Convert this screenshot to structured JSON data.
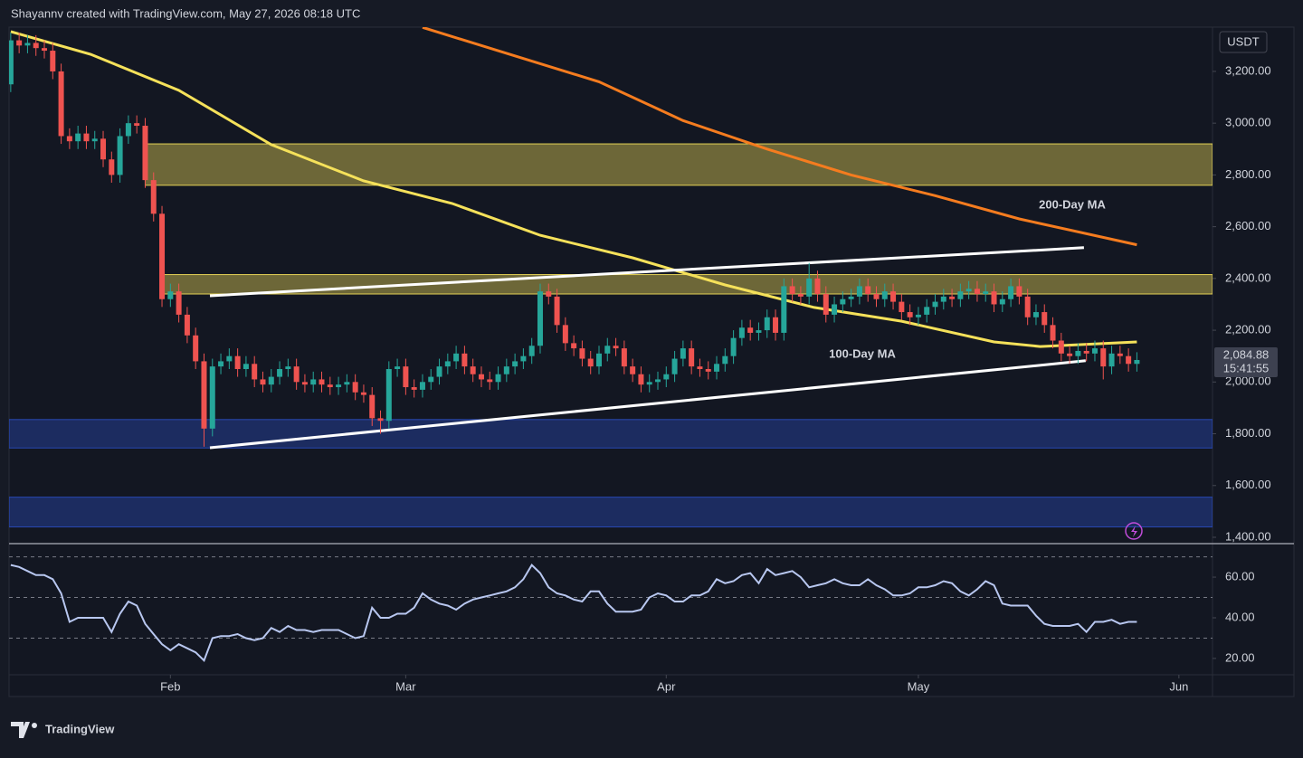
{
  "header": {
    "text": "Shayannv created with TradingView.com, May 27, 2026 08:18 UTC",
    "logo": "TradingView"
  },
  "chart_data": [
    {
      "type": "candlestick",
      "currency": "USDT",
      "x": [
        0,
        1,
        2,
        3,
        4,
        5,
        6,
        7,
        8,
        9,
        10,
        11,
        12,
        13,
        14,
        15,
        16,
        17,
        18,
        19,
        20,
        21,
        22,
        23,
        24,
        25,
        26,
        27,
        28,
        29,
        30,
        31,
        32,
        33,
        34,
        35,
        36,
        37,
        38,
        39,
        40,
        41,
        42,
        43,
        44,
        45,
        46,
        47,
        48,
        49,
        50,
        51,
        52,
        53,
        54,
        55,
        56,
        57,
        58,
        59,
        60,
        61,
        62,
        63,
        64,
        65,
        66,
        67,
        68,
        69,
        70,
        71,
        72,
        73,
        74,
        75,
        76,
        77,
        78,
        79,
        80,
        81,
        82,
        83,
        84,
        85,
        86,
        87,
        88,
        89,
        90,
        91,
        92,
        93,
        94,
        95,
        96,
        97,
        98,
        99,
        100,
        101,
        102,
        103,
        104,
        105,
        106,
        107,
        108,
        109,
        110,
        111,
        112,
        113,
        114,
        115,
        116,
        117,
        118,
        119,
        120,
        121,
        122,
        123,
        124,
        125,
        126,
        127,
        128,
        129,
        130,
        131,
        132,
        133,
        134
      ],
      "open": [
        3150,
        3320,
        3300,
        3310,
        3290,
        3280,
        3200,
        2950,
        2930,
        2960,
        2930,
        2940,
        2860,
        2800,
        2950,
        3000,
        2990,
        2780,
        2650,
        2320,
        2350,
        2260,
        2180,
        2080,
        1820,
        2060,
        2080,
        2100,
        2050,
        2070,
        2010,
        1990,
        2020,
        2050,
        2060,
        2000,
        1990,
        2010,
        1990,
        1980,
        1990,
        2000,
        1960,
        1950,
        1860,
        1850,
        2050,
        2060,
        1980,
        1970,
        2000,
        2020,
        2060,
        2080,
        2110,
        2060,
        2030,
        2010,
        2000,
        2030,
        2060,
        2080,
        2100,
        2140,
        2350,
        2330,
        2220,
        2150,
        2130,
        2090,
        2060,
        2110,
        2140,
        2130,
        2060,
        2030,
        1990,
        2000,
        2010,
        2030,
        2090,
        2130,
        2060,
        2050,
        2040,
        2070,
        2100,
        2170,
        2210,
        2190,
        2200,
        2250,
        2190,
        2370,
        2340,
        2330,
        2400,
        2340,
        2260,
        2300,
        2320,
        2330,
        2370,
        2340,
        2320,
        2350,
        2310,
        2270,
        2250,
        2260,
        2290,
        2310,
        2330,
        2320,
        2350,
        2360,
        2340,
        2350,
        2300,
        2320,
        2370,
        2330,
        2250,
        2270,
        2220,
        2160,
        2110,
        2100,
        2120,
        2110,
        2130,
        2060,
        2110,
        2100,
        2070
      ],
      "high": [
        3350,
        3350,
        3340,
        3340,
        3320,
        3310,
        3230,
        2980,
        2990,
        2990,
        2970,
        2970,
        2890,
        2980,
        3030,
        3030,
        3020,
        2810,
        2680,
        2380,
        2380,
        2290,
        2210,
        2110,
        2090,
        2110,
        2130,
        2130,
        2100,
        2100,
        2040,
        2050,
        2080,
        2090,
        2090,
        2030,
        2040,
        2040,
        2020,
        2020,
        2030,
        2030,
        1990,
        1980,
        1890,
        2080,
        2090,
        2090,
        2010,
        2030,
        2050,
        2090,
        2110,
        2140,
        2140,
        2090,
        2060,
        2040,
        2060,
        2090,
        2110,
        2130,
        2170,
        2380,
        2380,
        2360,
        2250,
        2180,
        2160,
        2120,
        2140,
        2170,
        2170,
        2160,
        2090,
        2060,
        2030,
        2040,
        2060,
        2120,
        2160,
        2160,
        2090,
        2080,
        2100,
        2130,
        2200,
        2240,
        2240,
        2230,
        2280,
        2280,
        2400,
        2400,
        2370,
        2460,
        2430,
        2370,
        2330,
        2350,
        2360,
        2400,
        2400,
        2370,
        2380,
        2380,
        2340,
        2300,
        2290,
        2320,
        2340,
        2360,
        2360,
        2380,
        2390,
        2390,
        2380,
        2380,
        2350,
        2400,
        2400,
        2360,
        2300,
        2300,
        2250,
        2190,
        2140,
        2150,
        2150,
        2160,
        2160,
        2140,
        2140,
        2130,
        2115
      ],
      "low": [
        3120,
        3270,
        3270,
        3260,
        3250,
        3170,
        2920,
        2900,
        2900,
        2900,
        2900,
        2830,
        2770,
        2770,
        2920,
        2960,
        2750,
        2620,
        2290,
        2290,
        2230,
        2150,
        2050,
        1750,
        1790,
        2030,
        2050,
        2020,
        2020,
        1980,
        1960,
        1960,
        1990,
        2020,
        1970,
        1960,
        1960,
        1960,
        1950,
        1950,
        1960,
        1930,
        1920,
        1830,
        1800,
        1820,
        2020,
        1950,
        1940,
        1940,
        1970,
        1990,
        2030,
        2050,
        2030,
        2000,
        1980,
        1970,
        1970,
        2000,
        2030,
        2050,
        2070,
        2110,
        2300,
        2190,
        2120,
        2100,
        2060,
        2030,
        2030,
        2080,
        2100,
        2030,
        2000,
        1960,
        1960,
        1970,
        1980,
        2000,
        2060,
        2030,
        2020,
        2010,
        2010,
        2040,
        2070,
        2140,
        2160,
        2160,
        2170,
        2160,
        2160,
        2310,
        2300,
        2300,
        2310,
        2230,
        2230,
        2270,
        2290,
        2300,
        2310,
        2290,
        2290,
        2280,
        2240,
        2220,
        2220,
        2230,
        2260,
        2280,
        2290,
        2290,
        2320,
        2310,
        2310,
        2270,
        2270,
        2290,
        2300,
        2220,
        2220,
        2190,
        2130,
        2080,
        2070,
        2070,
        2080,
        2080,
        2010,
        2030,
        2070,
        2040,
        2040
      ],
      "close": [
        3320,
        3300,
        3310,
        3290,
        3280,
        3200,
        2950,
        2930,
        2960,
        2930,
        2940,
        2860,
        2800,
        2950,
        3000,
        2990,
        2780,
        2650,
        2320,
        2350,
        2260,
        2180,
        2080,
        1820,
        2060,
        2080,
        2100,
        2050,
        2070,
        2010,
        1990,
        2020,
        2050,
        2060,
        2000,
        1990,
        2010,
        1990,
        1980,
        1990,
        2000,
        1960,
        1950,
        1860,
        1850,
        2050,
        2060,
        1980,
        1970,
        2000,
        2020,
        2060,
        2080,
        2110,
        2060,
        2030,
        2010,
        2000,
        2030,
        2060,
        2080,
        2100,
        2140,
        2350,
        2330,
        2220,
        2150,
        2130,
        2090,
        2060,
        2110,
        2140,
        2130,
        2060,
        2030,
        1990,
        2000,
        2010,
        2030,
        2090,
        2130,
        2060,
        2050,
        2040,
        2070,
        2100,
        2170,
        2210,
        2190,
        2200,
        2250,
        2190,
        2370,
        2340,
        2330,
        2400,
        2340,
        2260,
        2300,
        2320,
        2330,
        2370,
        2340,
        2320,
        2350,
        2310,
        2270,
        2250,
        2260,
        2290,
        2310,
        2330,
        2320,
        2350,
        2360,
        2340,
        2350,
        2300,
        2320,
        2370,
        2330,
        2250,
        2270,
        2220,
        2160,
        2110,
        2100,
        2120,
        2110,
        2130,
        2060,
        2110,
        2100,
        2070,
        2085
      ],
      "up_color": "#26a69a",
      "down_color": "#ef5350",
      "xlim": [
        -0.2,
        143
      ],
      "xticks": [
        {
          "value": 19,
          "label": "Feb"
        },
        {
          "value": 47,
          "label": "Mar"
        },
        {
          "value": 78,
          "label": "Apr"
        },
        {
          "value": 108,
          "label": "May"
        },
        {
          "value": 139,
          "label": "Jun"
        }
      ],
      "ylim": [
        1379,
        3371
      ],
      "yticks": [
        {
          "value": 1400,
          "label": "1,400.00"
        },
        {
          "value": 1600,
          "label": "1,600.00"
        },
        {
          "value": 1800,
          "label": "1,800.00"
        },
        {
          "value": 2000,
          "label": "2,000.00"
        },
        {
          "value": 2200,
          "label": "2,200.00"
        },
        {
          "value": 2400,
          "label": "2,400.00"
        },
        {
          "value": 2600,
          "label": "2,600.00"
        },
        {
          "value": 2800,
          "label": "2,800.00"
        },
        {
          "value": 3000,
          "label": "3,000.00"
        },
        {
          "value": 3200,
          "label": "3,200.00"
        }
      ],
      "last_price": {
        "value": 2084.88,
        "label": "2,084.88",
        "countdown": "15:41:55"
      },
      "series": [
        {
          "name": "200-Day MA",
          "color": "#f57c1f",
          "x": [
            49,
            60,
            70,
            80,
            90,
            100,
            110,
            120,
            134
          ],
          "values": [
            3370,
            3260,
            3160,
            3010,
            2900,
            2800,
            2720,
            2630,
            2530
          ]
        },
        {
          "name": "100-Day MA",
          "color": "#f5e15a",
          "x": [
            0,
            9.5,
            20,
            31,
            42,
            52.5,
            63,
            74,
            85,
            95.6,
            106,
            117,
            122.5,
            134
          ],
          "values": [
            3354,
            3266,
            3127,
            2917,
            2777,
            2690,
            2567,
            2480,
            2375,
            2288,
            2235,
            2155,
            2137,
            2155
          ]
        }
      ],
      "zones": [
        {
          "from": 2760,
          "to": 2920,
          "start": 16,
          "color": "#f5e15a"
        },
        {
          "from": 2340,
          "to": 2415,
          "start": 18,
          "color": "#f5e15a"
        },
        {
          "from": 1745,
          "to": 1855,
          "start": -0.2,
          "color": "#2a4dbf"
        },
        {
          "from": 1440,
          "to": 1555,
          "start": -0.2,
          "color": "#2a4dbf"
        }
      ],
      "trendlines": [
        {
          "x": [
            23.7,
            127.7
          ],
          "values": [
            2333,
            2519
          ]
        },
        {
          "x": [
            23.7,
            127.9
          ],
          "values": [
            1746,
            2082
          ]
        }
      ],
      "rsi": {
        "color": "#b8c7f0",
        "ylim": [
          12.4,
          75.6
        ],
        "yticks": [
          {
            "value": 20,
            "label": "20.00"
          },
          {
            "value": 40,
            "label": "40.00"
          },
          {
            "value": 60,
            "label": "60.00"
          }
        ],
        "levels": [
          30,
          50,
          70
        ],
        "values": [
          66,
          65,
          63,
          61,
          61,
          59,
          52,
          38,
          40,
          40,
          40,
          40,
          33,
          42,
          48,
          46,
          37,
          32,
          27,
          24,
          27,
          25,
          23,
          19,
          30,
          31,
          31,
          32,
          30,
          29,
          30,
          35,
          33,
          36,
          34,
          34,
          33,
          34,
          34,
          34,
          32,
          30,
          31,
          45,
          40,
          40,
          42,
          42,
          45,
          52,
          49,
          47,
          46,
          44,
          47,
          49,
          50,
          51,
          52,
          53,
          55,
          59,
          66,
          62,
          55,
          52,
          51,
          49,
          48,
          53,
          53,
          47,
          43,
          43,
          43,
          44,
          50,
          52,
          51,
          48,
          48,
          51,
          51,
          53,
          59,
          57,
          58,
          61,
          62,
          57,
          64,
          61,
          62,
          63,
          60,
          55,
          56,
          57,
          59,
          57,
          56,
          56,
          59,
          56,
          54,
          51,
          51,
          52,
          55,
          55,
          56,
          58,
          57,
          53,
          51,
          54,
          58,
          56,
          47,
          46,
          46,
          46,
          41,
          37,
          36,
          36,
          36,
          37,
          33,
          38,
          38,
          39,
          37,
          38,
          38
        ]
      }
    }
  ]
}
